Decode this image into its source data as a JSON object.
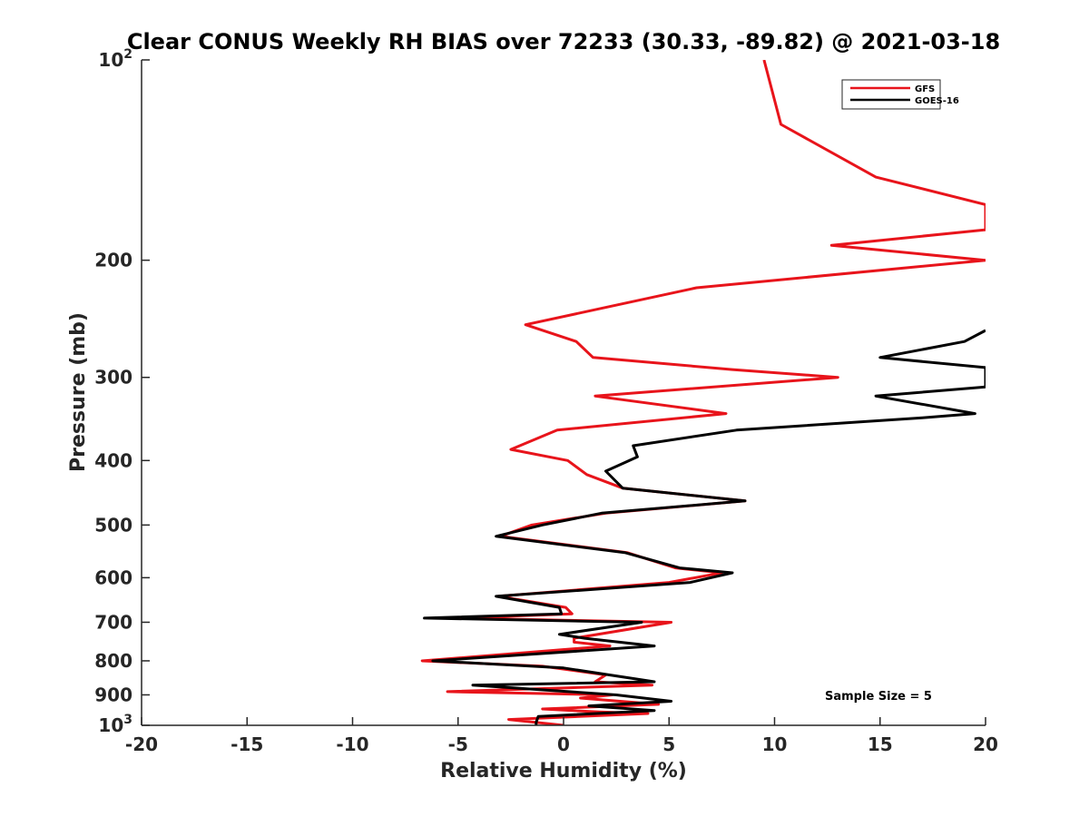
{
  "chart_data": {
    "type": "line",
    "title": "Clear CONUS Weekly RH BIAS over 72233 (30.33, -89.82) @ 2021-03-18",
    "xlabel": "Relative Humidity (%)",
    "ylabel": "Pressure (mb)",
    "xlim": [
      -20,
      20
    ],
    "ylim": [
      100,
      1000
    ],
    "yscale": "log",
    "y_reversed": true,
    "grid": false,
    "legend_position": "top-right",
    "x_ticks": [
      -20,
      -15,
      -10,
      -5,
      0,
      5,
      10,
      15,
      20
    ],
    "x_tick_labels": [
      "-20",
      "-15",
      "-10",
      "-5",
      "0",
      "5",
      "10",
      "15",
      "20"
    ],
    "y_ticks": [
      100,
      200,
      300,
      400,
      500,
      600,
      700,
      800,
      900,
      1000
    ],
    "y_tick_labels": [
      {
        "base": "10",
        "exp": "2"
      },
      {
        "base": "200",
        "exp": ""
      },
      {
        "base": "300",
        "exp": ""
      },
      {
        "base": "400",
        "exp": ""
      },
      {
        "base": "500",
        "exp": ""
      },
      {
        "base": "600",
        "exp": ""
      },
      {
        "base": "700",
        "exp": ""
      },
      {
        "base": "800",
        "exp": ""
      },
      {
        "base": "900",
        "exp": ""
      },
      {
        "base": "10",
        "exp": "3"
      }
    ],
    "annotation": "Sample Size = 5",
    "series": [
      {
        "name": "GFS",
        "color": "#e8141b",
        "points": [
          [
            9.5,
            100
          ],
          [
            10.3,
            125
          ],
          [
            14.8,
            150
          ],
          [
            20,
            165
          ],
          [
            20,
            180
          ],
          [
            12.7,
            190
          ],
          [
            20,
            200
          ],
          [
            20,
            200
          ],
          [
            6.3,
            220
          ],
          [
            -1.8,
            250
          ],
          [
            0.6,
            265
          ],
          [
            1.4,
            280
          ],
          [
            8.0,
            292
          ],
          [
            13.0,
            300
          ],
          [
            1.5,
            320
          ],
          [
            7.7,
            340
          ],
          [
            -0.3,
            360
          ],
          [
            -2.5,
            385
          ],
          [
            0.2,
            400
          ],
          [
            1.1,
            420
          ],
          [
            2.8,
            440
          ],
          [
            8.6,
            460
          ],
          [
            2.0,
            480
          ],
          [
            -1.5,
            500
          ],
          [
            -3.0,
            520
          ],
          [
            3.0,
            550
          ],
          [
            5.3,
            580
          ],
          [
            7.5,
            590
          ],
          [
            5.0,
            610
          ],
          [
            -3.1,
            640
          ],
          [
            0.1,
            665
          ],
          [
            0.4,
            680
          ],
          [
            -5.0,
            690
          ],
          [
            5.1,
            700
          ],
          [
            0.5,
            740
          ],
          [
            0.5,
            750
          ],
          [
            2.2,
            760
          ],
          [
            -0.1,
            770
          ],
          [
            -6.7,
            800
          ],
          [
            -1.0,
            815
          ],
          [
            2.0,
            840
          ],
          [
            1.5,
            860
          ],
          [
            4.2,
            870
          ],
          [
            -5.5,
            890
          ],
          [
            2.3,
            900
          ],
          [
            0.8,
            910
          ],
          [
            4.5,
            930
          ],
          [
            -1.0,
            945
          ],
          [
            1.7,
            955
          ],
          [
            4.0,
            960
          ],
          [
            -2.6,
            980
          ],
          [
            0.0,
            1000
          ]
        ]
      },
      {
        "name": "GOES-16",
        "color": "#000000",
        "points": [
          [
            20,
            255
          ],
          [
            19.0,
            265
          ],
          [
            15.0,
            280
          ],
          [
            20,
            290
          ],
          [
            20,
            310
          ],
          [
            14.8,
            320
          ],
          [
            19.5,
            340
          ],
          [
            17.0,
            345
          ],
          [
            8.2,
            360
          ],
          [
            3.3,
            380
          ],
          [
            3.5,
            395
          ],
          [
            2.0,
            415
          ],
          [
            2.8,
            440
          ],
          [
            8.6,
            460
          ],
          [
            1.8,
            480
          ],
          [
            -1.0,
            500
          ],
          [
            -3.2,
            520
          ],
          [
            2.9,
            550
          ],
          [
            5.5,
            580
          ],
          [
            8.0,
            590
          ],
          [
            6.0,
            610
          ],
          [
            -3.2,
            640
          ],
          [
            -0.2,
            665
          ],
          [
            -0.1,
            680
          ],
          [
            -6.6,
            690
          ],
          [
            3.7,
            700
          ],
          [
            -0.2,
            730
          ],
          [
            1.0,
            740
          ],
          [
            4.3,
            760
          ],
          [
            -6.2,
            800
          ],
          [
            0.0,
            820
          ],
          [
            4.3,
            860
          ],
          [
            -4.3,
            870
          ],
          [
            2.5,
            900
          ],
          [
            5.1,
            920
          ],
          [
            1.2,
            935
          ],
          [
            4.3,
            950
          ],
          [
            -1.2,
            970
          ],
          [
            -1.3,
            990
          ],
          [
            -1.3,
            1000
          ]
        ]
      }
    ]
  }
}
